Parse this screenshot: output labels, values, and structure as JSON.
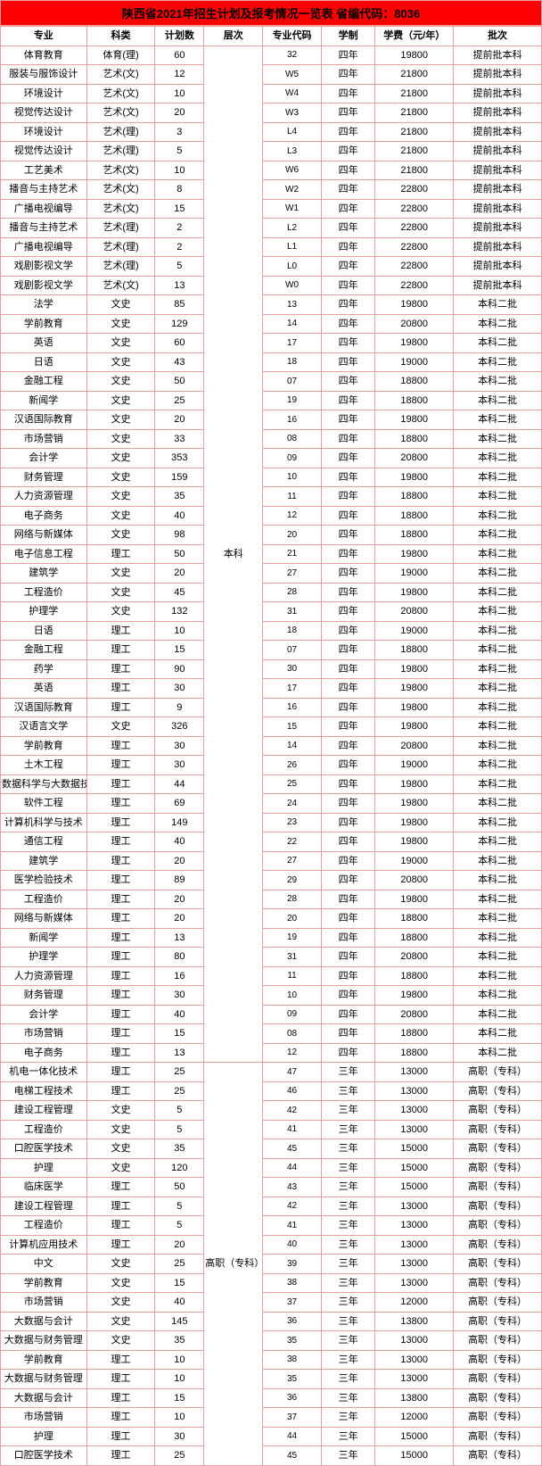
{
  "title": "陕西省2021年招生计划及报考情况一览表  省编代码：8036",
  "headers": {
    "major": "专业",
    "category": "科类",
    "plan": "计划数",
    "level": "层次",
    "code": "专业代码",
    "duration": "学制",
    "fee": "学费（元/年）",
    "batch": "批次"
  },
  "levels": {
    "benke": "本科",
    "gaozhi": "高职（专科）"
  },
  "rows": [
    {
      "major": "体育教育",
      "category": "体育(理)",
      "plan": "60",
      "level": "benke",
      "code": "32",
      "duration": "四年",
      "fee": "19800",
      "batch": "提前批本科"
    },
    {
      "major": "服装与服饰设计",
      "category": "艺术(文)",
      "plan": "12",
      "level": "benke",
      "code": "W5",
      "duration": "四年",
      "fee": "21800",
      "batch": "提前批本科"
    },
    {
      "major": "环境设计",
      "category": "艺术(文)",
      "plan": "10",
      "level": "benke",
      "code": "W4",
      "duration": "四年",
      "fee": "21800",
      "batch": "提前批本科"
    },
    {
      "major": "视觉传达设计",
      "category": "艺术(文)",
      "plan": "20",
      "level": "benke",
      "code": "W3",
      "duration": "四年",
      "fee": "21800",
      "batch": "提前批本科"
    },
    {
      "major": "环境设计",
      "category": "艺术(理)",
      "plan": "3",
      "level": "benke",
      "code": "L4",
      "duration": "四年",
      "fee": "21800",
      "batch": "提前批本科"
    },
    {
      "major": "视觉传达设计",
      "category": "艺术(理)",
      "plan": "5",
      "level": "benke",
      "code": "L3",
      "duration": "四年",
      "fee": "21800",
      "batch": "提前批本科"
    },
    {
      "major": "工艺美术",
      "category": "艺术(文)",
      "plan": "10",
      "level": "benke",
      "code": "W6",
      "duration": "四年",
      "fee": "21800",
      "batch": "提前批本科"
    },
    {
      "major": "播音与主持艺术",
      "category": "艺术(文)",
      "plan": "8",
      "level": "benke",
      "code": "W2",
      "duration": "四年",
      "fee": "22800",
      "batch": "提前批本科"
    },
    {
      "major": "广播电视编导",
      "category": "艺术(文)",
      "plan": "15",
      "level": "benke",
      "code": "W1",
      "duration": "四年",
      "fee": "22800",
      "batch": "提前批本科"
    },
    {
      "major": "播音与主持艺术",
      "category": "艺术(理)",
      "plan": "2",
      "level": "benke",
      "code": "L2",
      "duration": "四年",
      "fee": "22800",
      "batch": "提前批本科"
    },
    {
      "major": "广播电视编导",
      "category": "艺术(理)",
      "plan": "2",
      "level": "benke",
      "code": "L1",
      "duration": "四年",
      "fee": "22800",
      "batch": "提前批本科"
    },
    {
      "major": "戏剧影视文学",
      "category": "艺术(理)",
      "plan": "5",
      "level": "benke",
      "code": "L0",
      "duration": "四年",
      "fee": "22800",
      "batch": "提前批本科"
    },
    {
      "major": "戏剧影视文学",
      "category": "艺术(文)",
      "plan": "13",
      "level": "benke",
      "code": "W0",
      "duration": "四年",
      "fee": "22800",
      "batch": "提前批本科"
    },
    {
      "major": "法学",
      "category": "文史",
      "plan": "85",
      "level": "benke",
      "code": "13",
      "duration": "四年",
      "fee": "19800",
      "batch": "本科二批"
    },
    {
      "major": "学前教育",
      "category": "文史",
      "plan": "129",
      "level": "benke",
      "code": "14",
      "duration": "四年",
      "fee": "20800",
      "batch": "本科二批"
    },
    {
      "major": "英语",
      "category": "文史",
      "plan": "60",
      "level": "benke",
      "code": "17",
      "duration": "四年",
      "fee": "19800",
      "batch": "本科二批"
    },
    {
      "major": "日语",
      "category": "文史",
      "plan": "43",
      "level": "benke",
      "code": "18",
      "duration": "四年",
      "fee": "19000",
      "batch": "本科二批"
    },
    {
      "major": "金融工程",
      "category": "文史",
      "plan": "50",
      "level": "benke",
      "code": "07",
      "duration": "四年",
      "fee": "18800",
      "batch": "本科二批"
    },
    {
      "major": "新闻学",
      "category": "文史",
      "plan": "25",
      "level": "benke",
      "code": "19",
      "duration": "四年",
      "fee": "18800",
      "batch": "本科二批"
    },
    {
      "major": "汉语国际教育",
      "category": "文史",
      "plan": "20",
      "level": "benke",
      "code": "16",
      "duration": "四年",
      "fee": "19800",
      "batch": "本科二批"
    },
    {
      "major": "市场营销",
      "category": "文史",
      "plan": "33",
      "level": "benke",
      "code": "08",
      "duration": "四年",
      "fee": "18800",
      "batch": "本科二批"
    },
    {
      "major": "会计学",
      "category": "文史",
      "plan": "353",
      "level": "benke",
      "code": "09",
      "duration": "四年",
      "fee": "20800",
      "batch": "本科二批"
    },
    {
      "major": "财务管理",
      "category": "文史",
      "plan": "159",
      "level": "benke",
      "code": "10",
      "duration": "四年",
      "fee": "19800",
      "batch": "本科二批"
    },
    {
      "major": "人力资源管理",
      "category": "文史",
      "plan": "35",
      "level": "benke",
      "code": "11",
      "duration": "四年",
      "fee": "18800",
      "batch": "本科二批"
    },
    {
      "major": "电子商务",
      "category": "文史",
      "plan": "40",
      "level": "benke",
      "code": "12",
      "duration": "四年",
      "fee": "18800",
      "batch": "本科二批"
    },
    {
      "major": "网络与新媒体",
      "category": "文史",
      "plan": "98",
      "level": "benke",
      "code": "20",
      "duration": "四年",
      "fee": "18800",
      "batch": "本科二批"
    },
    {
      "major": "电子信息工程",
      "category": "理工",
      "plan": "50",
      "level": "benke",
      "code": "21",
      "duration": "四年",
      "fee": "19800",
      "batch": "本科二批"
    },
    {
      "major": "建筑学",
      "category": "文史",
      "plan": "20",
      "level": "benke",
      "code": "27",
      "duration": "四年",
      "fee": "19000",
      "batch": "本科二批"
    },
    {
      "major": "工程造价",
      "category": "文史",
      "plan": "45",
      "level": "benke",
      "code": "28",
      "duration": "四年",
      "fee": "19800",
      "batch": "本科二批"
    },
    {
      "major": "护理学",
      "category": "文史",
      "plan": "132",
      "level": "benke",
      "code": "31",
      "duration": "四年",
      "fee": "20800",
      "batch": "本科二批"
    },
    {
      "major": "日语",
      "category": "理工",
      "plan": "10",
      "level": "benke",
      "code": "18",
      "duration": "四年",
      "fee": "19000",
      "batch": "本科二批"
    },
    {
      "major": "金融工程",
      "category": "理工",
      "plan": "15",
      "level": "benke",
      "code": "07",
      "duration": "四年",
      "fee": "18800",
      "batch": "本科二批"
    },
    {
      "major": "药学",
      "category": "理工",
      "plan": "90",
      "level": "benke",
      "code": "30",
      "duration": "四年",
      "fee": "19800",
      "batch": "本科二批"
    },
    {
      "major": "英语",
      "category": "理工",
      "plan": "30",
      "level": "benke",
      "code": "17",
      "duration": "四年",
      "fee": "19800",
      "batch": "本科二批"
    },
    {
      "major": "汉语国际教育",
      "category": "理工",
      "plan": "9",
      "level": "benke",
      "code": "16",
      "duration": "四年",
      "fee": "19800",
      "batch": "本科二批"
    },
    {
      "major": "汉语言文学",
      "category": "文史",
      "plan": "326",
      "level": "benke",
      "code": "15",
      "duration": "四年",
      "fee": "19800",
      "batch": "本科二批"
    },
    {
      "major": "学前教育",
      "category": "理工",
      "plan": "30",
      "level": "benke",
      "code": "14",
      "duration": "四年",
      "fee": "20800",
      "batch": "本科二批"
    },
    {
      "major": "土木工程",
      "category": "理工",
      "plan": "30",
      "level": "benke",
      "code": "26",
      "duration": "四年",
      "fee": "19000",
      "batch": "本科二批"
    },
    {
      "major": "数据科学与大数据技术",
      "category": "理工",
      "plan": "44",
      "level": "benke",
      "code": "25",
      "duration": "四年",
      "fee": "19800",
      "batch": "本科二批"
    },
    {
      "major": "软件工程",
      "category": "理工",
      "plan": "69",
      "level": "benke",
      "code": "24",
      "duration": "四年",
      "fee": "19800",
      "batch": "本科二批"
    },
    {
      "major": "计算机科学与技术",
      "category": "理工",
      "plan": "149",
      "level": "benke",
      "code": "23",
      "duration": "四年",
      "fee": "19800",
      "batch": "本科二批"
    },
    {
      "major": "通信工程",
      "category": "理工",
      "plan": "40",
      "level": "benke",
      "code": "22",
      "duration": "四年",
      "fee": "19800",
      "batch": "本科二批"
    },
    {
      "major": "建筑学",
      "category": "理工",
      "plan": "20",
      "level": "benke",
      "code": "27",
      "duration": "四年",
      "fee": "19000",
      "batch": "本科二批"
    },
    {
      "major": "医学检验技术",
      "category": "理工",
      "plan": "89",
      "level": "benke",
      "code": "29",
      "duration": "四年",
      "fee": "20800",
      "batch": "本科二批"
    },
    {
      "major": "工程造价",
      "category": "理工",
      "plan": "20",
      "level": "benke",
      "code": "28",
      "duration": "四年",
      "fee": "19800",
      "batch": "本科二批"
    },
    {
      "major": "网络与新媒体",
      "category": "理工",
      "plan": "20",
      "level": "benke",
      "code": "20",
      "duration": "四年",
      "fee": "18800",
      "batch": "本科二批"
    },
    {
      "major": "新闻学",
      "category": "理工",
      "plan": "13",
      "level": "benke",
      "code": "19",
      "duration": "四年",
      "fee": "18800",
      "batch": "本科二批"
    },
    {
      "major": "护理学",
      "category": "理工",
      "plan": "80",
      "level": "benke",
      "code": "31",
      "duration": "四年",
      "fee": "20800",
      "batch": "本科二批"
    },
    {
      "major": "人力资源管理",
      "category": "理工",
      "plan": "16",
      "level": "benke",
      "code": "11",
      "duration": "四年",
      "fee": "18800",
      "batch": "本科二批"
    },
    {
      "major": "财务管理",
      "category": "理工",
      "plan": "30",
      "level": "benke",
      "code": "10",
      "duration": "四年",
      "fee": "19800",
      "batch": "本科二批"
    },
    {
      "major": "会计学",
      "category": "理工",
      "plan": "40",
      "level": "benke",
      "code": "09",
      "duration": "四年",
      "fee": "20800",
      "batch": "本科二批"
    },
    {
      "major": "市场营销",
      "category": "理工",
      "plan": "15",
      "level": "benke",
      "code": "08",
      "duration": "四年",
      "fee": "18800",
      "batch": "本科二批"
    },
    {
      "major": "电子商务",
      "category": "理工",
      "plan": "13",
      "level": "benke",
      "code": "12",
      "duration": "四年",
      "fee": "18800",
      "batch": "本科二批"
    },
    {
      "major": "机电一体化技术",
      "category": "理工",
      "plan": "25",
      "level": "gaozhi",
      "code": "47",
      "duration": "三年",
      "fee": "13000",
      "batch": "高职（专科）"
    },
    {
      "major": "电梯工程技术",
      "category": "理工",
      "plan": "25",
      "level": "gaozhi",
      "code": "46",
      "duration": "三年",
      "fee": "13000",
      "batch": "高职（专科）"
    },
    {
      "major": "建设工程管理",
      "category": "文史",
      "plan": "5",
      "level": "gaozhi",
      "code": "42",
      "duration": "三年",
      "fee": "13000",
      "batch": "高职（专科）"
    },
    {
      "major": "工程造价",
      "category": "文史",
      "plan": "5",
      "level": "gaozhi",
      "code": "41",
      "duration": "三年",
      "fee": "13000",
      "batch": "高职（专科）"
    },
    {
      "major": "口腔医学技术",
      "category": "文史",
      "plan": "35",
      "level": "gaozhi",
      "code": "45",
      "duration": "三年",
      "fee": "15000",
      "batch": "高职（专科）"
    },
    {
      "major": "护理",
      "category": "文史",
      "plan": "120",
      "level": "gaozhi",
      "code": "44",
      "duration": "三年",
      "fee": "15000",
      "batch": "高职（专科）"
    },
    {
      "major": "临床医学",
      "category": "理工",
      "plan": "50",
      "level": "gaozhi",
      "code": "43",
      "duration": "三年",
      "fee": "15000",
      "batch": "高职（专科）"
    },
    {
      "major": "建设工程管理",
      "category": "理工",
      "plan": "5",
      "level": "gaozhi",
      "code": "42",
      "duration": "三年",
      "fee": "13000",
      "batch": "高职（专科）"
    },
    {
      "major": "工程造价",
      "category": "理工",
      "plan": "5",
      "level": "gaozhi",
      "code": "41",
      "duration": "三年",
      "fee": "13000",
      "batch": "高职（专科）"
    },
    {
      "major": "计算机应用技术",
      "category": "理工",
      "plan": "20",
      "level": "gaozhi",
      "code": "40",
      "duration": "三年",
      "fee": "13000",
      "batch": "高职（专科）"
    },
    {
      "major": "中文",
      "category": "文史",
      "plan": "25",
      "level": "gaozhi",
      "code": "39",
      "duration": "三年",
      "fee": "13000",
      "batch": "高职（专科）"
    },
    {
      "major": "学前教育",
      "category": "文史",
      "plan": "15",
      "level": "gaozhi",
      "code": "38",
      "duration": "三年",
      "fee": "13000",
      "batch": "高职（专科）"
    },
    {
      "major": "市场营销",
      "category": "文史",
      "plan": "40",
      "level": "gaozhi",
      "code": "37",
      "duration": "三年",
      "fee": "12000",
      "batch": "高职（专科）"
    },
    {
      "major": "大数据与会计",
      "category": "文史",
      "plan": "145",
      "level": "gaozhi",
      "code": "36",
      "duration": "三年",
      "fee": "13800",
      "batch": "高职（专科）"
    },
    {
      "major": "大数据与财务管理",
      "category": "文史",
      "plan": "35",
      "level": "gaozhi",
      "code": "35",
      "duration": "三年",
      "fee": "13000",
      "batch": "高职（专科）"
    },
    {
      "major": "学前教育",
      "category": "理工",
      "plan": "10",
      "level": "gaozhi",
      "code": "38",
      "duration": "三年",
      "fee": "13000",
      "batch": "高职（专科）"
    },
    {
      "major": "大数据与财务管理",
      "category": "理工",
      "plan": "10",
      "level": "gaozhi",
      "code": "35",
      "duration": "三年",
      "fee": "13000",
      "batch": "高职（专科）"
    },
    {
      "major": "大数据与会计",
      "category": "理工",
      "plan": "15",
      "level": "gaozhi",
      "code": "36",
      "duration": "三年",
      "fee": "13800",
      "batch": "高职（专科）"
    },
    {
      "major": "市场营销",
      "category": "理工",
      "plan": "10",
      "level": "gaozhi",
      "code": "37",
      "duration": "三年",
      "fee": "12000",
      "batch": "高职（专科）"
    },
    {
      "major": "护理",
      "category": "理工",
      "plan": "30",
      "level": "gaozhi",
      "code": "44",
      "duration": "三年",
      "fee": "15000",
      "batch": "高职（专科）"
    },
    {
      "major": "口腔医学技术",
      "category": "理工",
      "plan": "25",
      "level": "gaozhi",
      "code": "45",
      "duration": "三年",
      "fee": "15000",
      "batch": "高职（专科）"
    }
  ]
}
